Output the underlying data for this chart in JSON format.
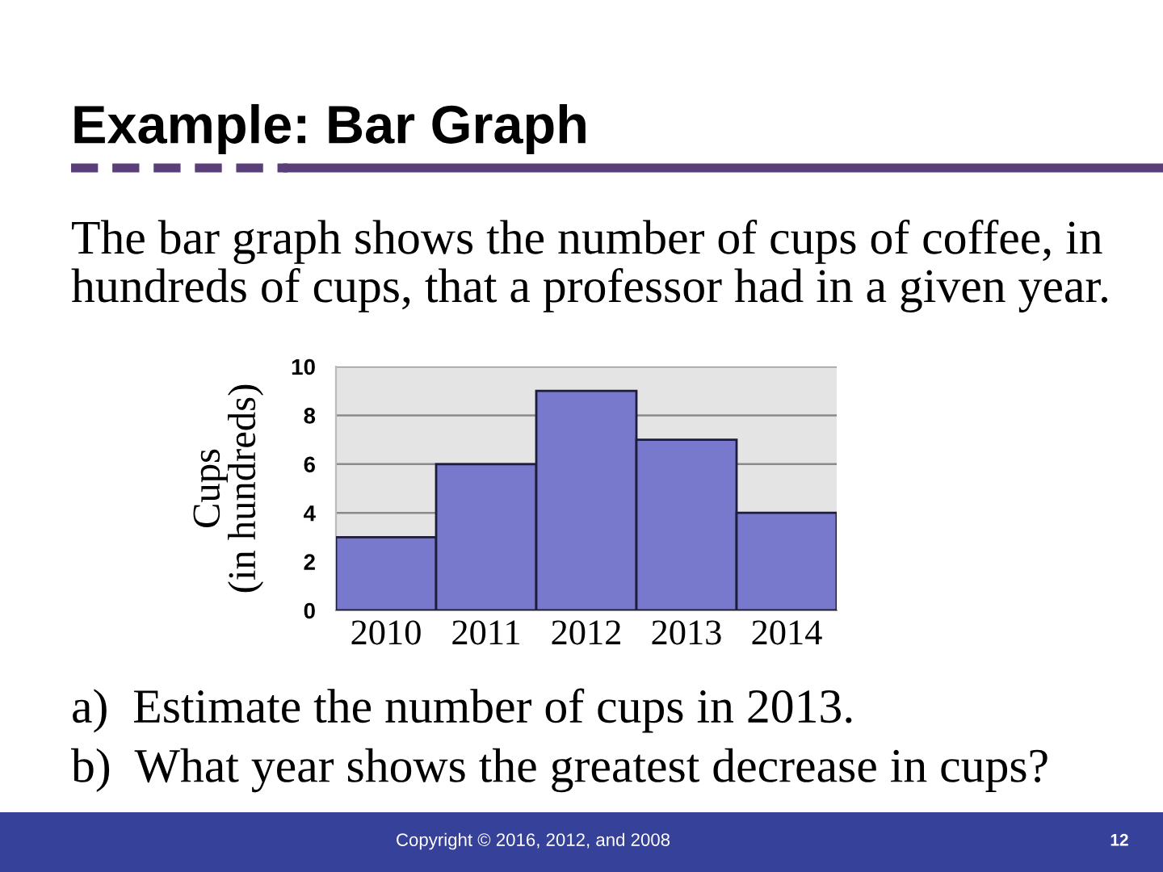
{
  "chart_data": {
    "type": "bar",
    "title": "Example: Bar Graph",
    "subtitle": "The bar graph shows the number of cups of coffee, in hundreds of cups, that a professor had in a given year.",
    "ylabel": "Cups\n(in hundreds)",
    "categories": [
      "2010",
      "2011",
      "2012",
      "2013",
      "2014"
    ],
    "values": [
      3,
      6,
      9,
      7,
      4
    ],
    "color": "#7878cc",
    "ylim": [
      0,
      10
    ],
    "yticks": [
      0,
      2,
      4,
      6,
      8,
      10
    ],
    "grid": "y",
    "annotations": [
      "a)  Estimate the number of cups in 2013.",
      "b)  What year shows the greatest decrease in cups?",
      "Copyright © 2016, 2012, and 2008",
      "12"
    ]
  }
}
